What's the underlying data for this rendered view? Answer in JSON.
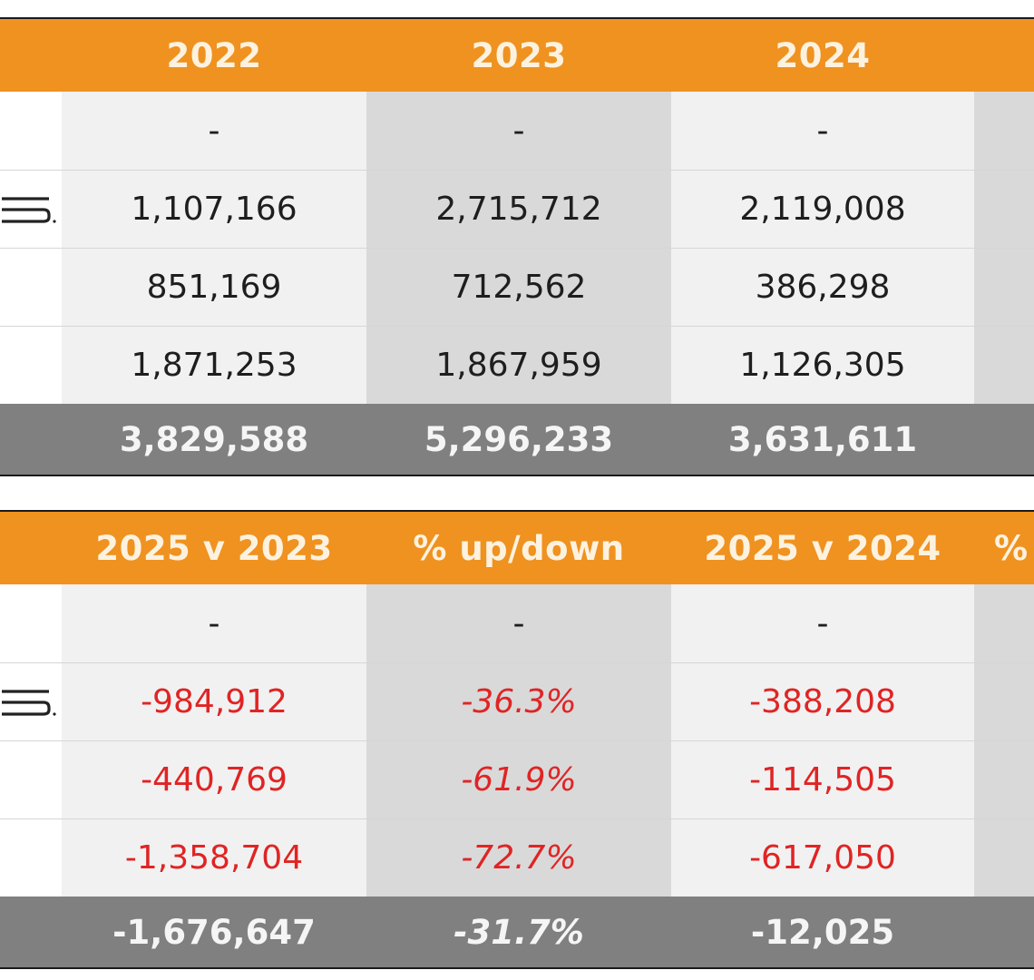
{
  "top_table": {
    "headers": [
      "",
      "2022",
      "2023",
      "2024",
      ""
    ],
    "rows": [
      [
        "",
        "-",
        "-",
        "-",
        ""
      ],
      [
        "",
        "1,107,166",
        "2,715,712",
        "2,119,008",
        ""
      ],
      [
        "",
        "851,169",
        "712,562",
        "386,298",
        ""
      ],
      [
        "",
        "1,871,253",
        "1,867,959",
        "1,126,305",
        ""
      ]
    ],
    "total": [
      "",
      "3,829,588",
      "5,296,233",
      "3,631,611",
      ""
    ]
  },
  "bottom_table": {
    "headers": [
      "",
      "2025 v 2023",
      "% up/down",
      "2025 v 2024",
      "%"
    ],
    "rows": [
      [
        "",
        "-",
        "-",
        "-",
        ""
      ],
      [
        "",
        "-984,912",
        "-36.3%",
        "-388,208",
        ""
      ],
      [
        "",
        "-440,769",
        "-61.9%",
        "-114,505",
        ""
      ],
      [
        "",
        "-1,358,704",
        "-72.7%",
        "-617,050",
        ""
      ]
    ],
    "total": [
      "",
      "-1,676,647",
      "-31.7%",
      "-12,025",
      ""
    ]
  },
  "icons": {
    "row_logo": "brand-logo-fragment"
  },
  "colors": {
    "header_bg": "#ef9220",
    "total_bg": "#808080",
    "negative_text": "#e02424"
  }
}
